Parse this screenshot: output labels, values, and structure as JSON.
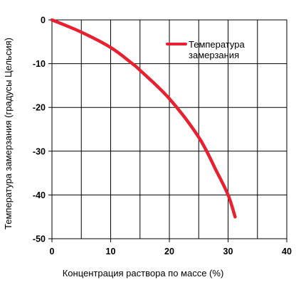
{
  "chart_data": {
    "type": "line",
    "title": "",
    "xlabel": "Концентрация раствора по массе (%)",
    "ylabel": "Температура замерзания (градусы Цельсия)",
    "xlim": [
      0,
      40
    ],
    "ylim": [
      -50,
      0
    ],
    "xticks": [
      "0",
      "10",
      "20",
      "30",
      "40"
    ],
    "yticks": [
      "0",
      "-10",
      "-20",
      "-30",
      "-40",
      "-50"
    ],
    "grid": true,
    "legend_position": "top-right",
    "series": [
      {
        "name_lines": [
          "Температура",
          "замерзания"
        ],
        "color": "#e8202f",
        "x": [
          0,
          5,
          10,
          13.5,
          15,
          20,
          25,
          28,
          30,
          31.2
        ],
        "y": [
          0,
          -2.8,
          -6.3,
          -9.8,
          -11.5,
          -18,
          -26.8,
          -34.5,
          -40,
          -45
        ]
      }
    ]
  }
}
